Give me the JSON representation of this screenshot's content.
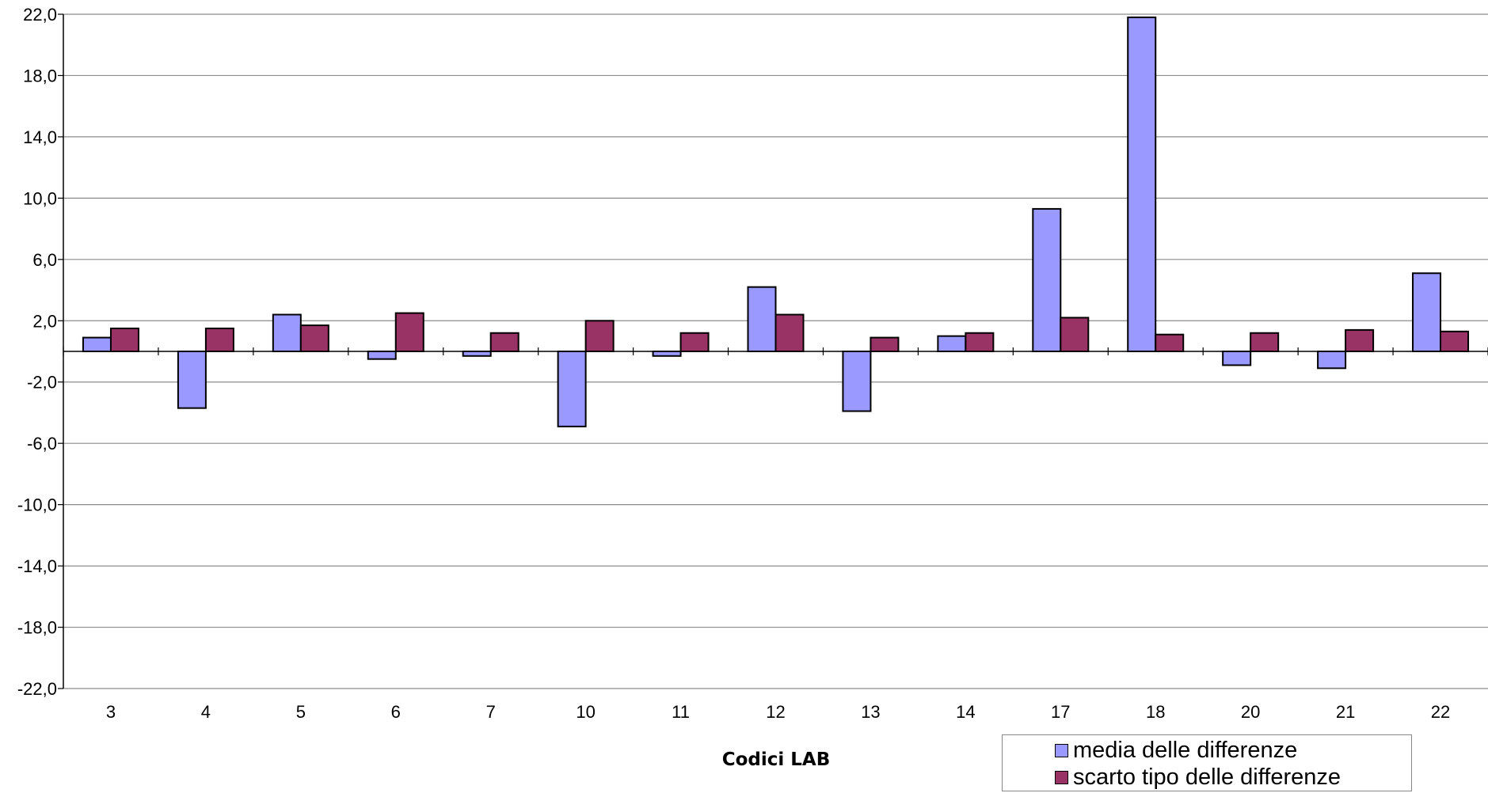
{
  "chart_data": {
    "type": "bar",
    "title": "",
    "xlabel": "Codici LAB",
    "ylabel": "",
    "ylim": [
      -22,
      22
    ],
    "yticks": [
      22,
      18,
      14,
      10,
      6,
      2,
      -2,
      -6,
      -10,
      -14,
      -18,
      -22
    ],
    "ytick_labels": [
      "22,0",
      "18,0",
      "14,0",
      "10,0",
      "6,0",
      "2,0",
      "-2,0",
      "-6,0",
      "-10,0",
      "-14,0",
      "-18,0",
      "-22,0"
    ],
    "grid": true,
    "legend_position": "bottom-right",
    "categories": [
      "3",
      "4",
      "5",
      "6",
      "7",
      "10",
      "11",
      "12",
      "13",
      "14",
      "17",
      "18",
      "20",
      "21",
      "22"
    ],
    "series": [
      {
        "name": "media delle differenze",
        "color": "#9999ff",
        "values": [
          0.9,
          -3.7,
          2.4,
          -0.5,
          -0.3,
          -4.9,
          -0.3,
          4.2,
          -3.9,
          1.0,
          9.3,
          21.8,
          -0.9,
          -1.1,
          5.1
        ]
      },
      {
        "name": "scarto tipo delle differenze",
        "color": "#993366",
        "values": [
          1.5,
          1.5,
          1.7,
          2.5,
          1.2,
          2.0,
          1.2,
          2.4,
          0.9,
          1.2,
          2.2,
          1.1,
          1.2,
          1.4,
          1.3
        ]
      }
    ]
  }
}
